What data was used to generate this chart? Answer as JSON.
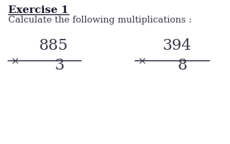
{
  "title": "Exercise 1",
  "subtitle": "Calculate the following multiplications :",
  "title_fontsize": 11,
  "subtitle_fontsize": 9.5,
  "bg_color": "#ffffff",
  "text_color": "#3a3a4a",
  "title_color": "#1a1a2e",
  "problem1_top": "885",
  "problem1_bottom": "3",
  "problem2_top": "394",
  "problem2_bottom": "8",
  "number_fontsize": 16,
  "operator_fontsize": 11,
  "fig_width": 3.35,
  "fig_height": 2.11,
  "dpi": 100
}
